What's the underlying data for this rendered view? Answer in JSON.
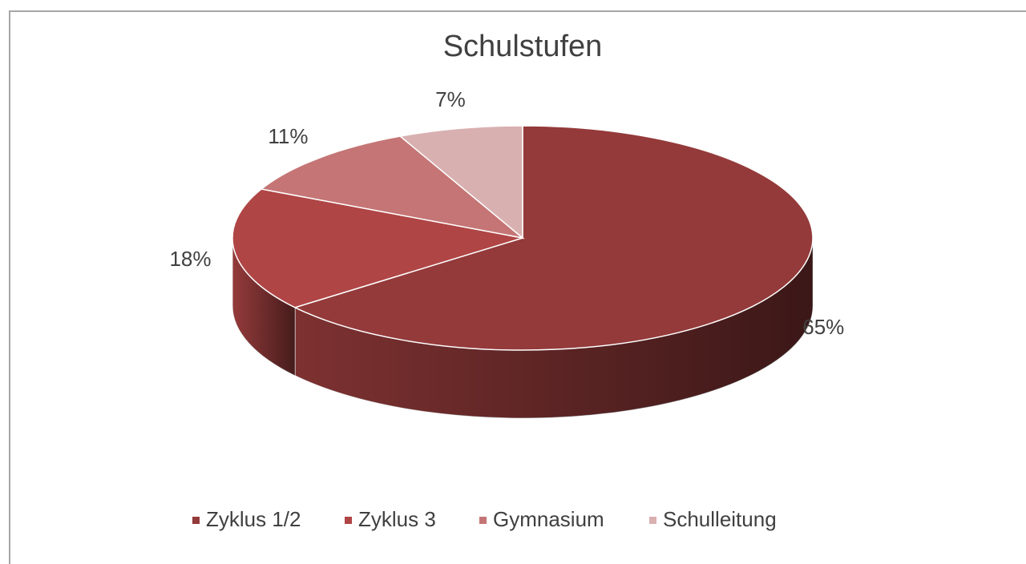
{
  "chart_data": {
    "type": "pie",
    "title": "Schulstufen",
    "categories": [
      "Zyklus 1/2",
      "Zyklus 3",
      "Gymnasium",
      "Schulleitung"
    ],
    "values": [
      65,
      18,
      11,
      7
    ],
    "value_labels": [
      "65%",
      "18%",
      "11%",
      "7%"
    ],
    "colors": [
      "#943a3a",
      "#b04545",
      "#c57575",
      "#d9b0b0"
    ],
    "legend": "bottom"
  }
}
